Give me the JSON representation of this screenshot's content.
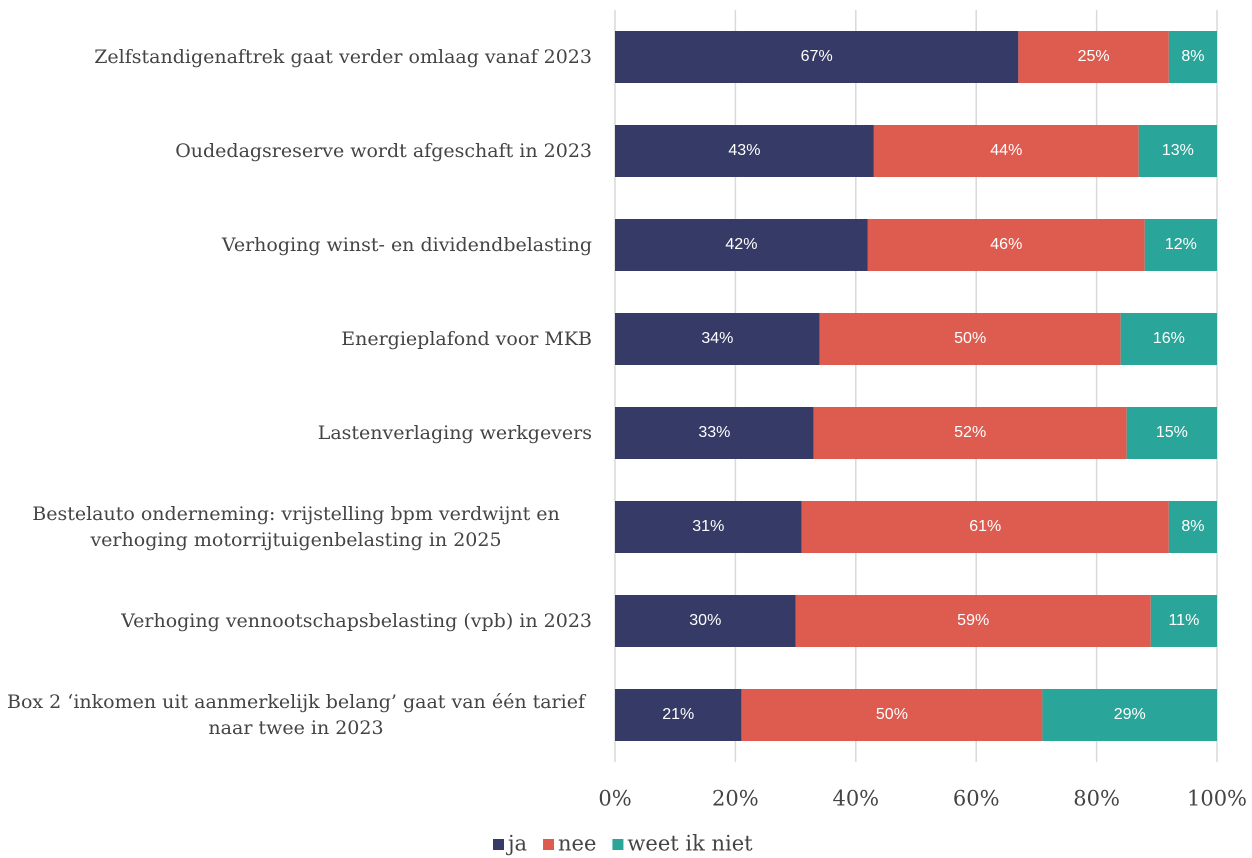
{
  "chart_data": {
    "type": "stacked-barh",
    "categories": [
      "Zelfstandigenaftrek gaat verder omlaag vanaf 2023",
      "Oudedagsreserve wordt afgeschaft in 2023",
      "Verhoging winst- en dividendbelasting",
      "Energieplafond voor MKB",
      "Lastenverlaging werkgevers",
      "Bestelauto onderneming: vrijstelling bpm verdwijnt en verhoging motorrijtuigenbelasting in 2025",
      "Verhoging vennootschapsbelasting (vpb) in 2023",
      "Box 2 ‘inkomen uit aanmerkelijk belang’ gaat van één tarief naar twee in 2023"
    ],
    "series": [
      {
        "name": "ja",
        "color": "#363a66",
        "values": [
          67,
          43,
          42,
          34,
          33,
          31,
          30,
          21
        ],
        "value_labels": [
          "67%",
          "43%",
          "42%",
          "34%",
          "33%",
          "31%",
          "30%",
          "21%"
        ]
      },
      {
        "name": "nee",
        "color": "#de5b4f",
        "values": [
          25,
          44,
          46,
          50,
          52,
          61,
          59,
          50
        ],
        "value_labels": [
          "25%",
          "44%",
          "46%",
          "50%",
          "52%",
          "61%",
          "59%",
          "50%"
        ]
      },
      {
        "name": "weet ik niet",
        "color": "#2aa59a",
        "values": [
          8,
          13,
          12,
          16,
          15,
          8,
          11,
          29
        ],
        "value_labels": [
          "8%",
          "13%",
          "12%",
          "16%",
          "15%",
          "8%",
          "11%",
          "29%"
        ]
      }
    ],
    "xlim": [
      0,
      100
    ],
    "xticks": [
      {
        "value": 0,
        "label": "0%"
      },
      {
        "value": 20,
        "label": "20%"
      },
      {
        "value": 40,
        "label": "40%"
      },
      {
        "value": 60,
        "label": "60%"
      },
      {
        "value": 80,
        "label": "80%"
      },
      {
        "value": 100,
        "label": "100%"
      }
    ],
    "grid": true,
    "legend": "bottom"
  }
}
